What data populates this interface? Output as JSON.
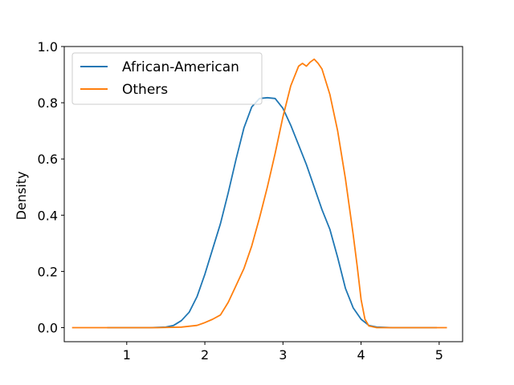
{
  "chart_data": {
    "type": "line",
    "title": "",
    "xlabel": "",
    "ylabel": "Density",
    "xlim": [
      0.2,
      5.3
    ],
    "ylim": [
      -0.05,
      1.0
    ],
    "x_ticks": [
      1,
      2,
      3,
      4,
      5
    ],
    "y_ticks": [
      0.0,
      0.2,
      0.4,
      0.6,
      0.8,
      1.0
    ],
    "x_tick_labels": [
      "1",
      "2",
      "3",
      "4",
      "5"
    ],
    "y_tick_labels": [
      "0.0",
      "0.2",
      "0.4",
      "0.6",
      "0.8",
      "1.0"
    ],
    "grid": false,
    "legend": "top-left",
    "series": [
      {
        "name": "African-American",
        "color": "#1f77b4",
        "points": [
          [
            0.75,
            0.0
          ],
          [
            1.0,
            0.0
          ],
          [
            1.3,
            0.0
          ],
          [
            1.5,
            0.002
          ],
          [
            1.6,
            0.008
          ],
          [
            1.7,
            0.025
          ],
          [
            1.8,
            0.055
          ],
          [
            1.9,
            0.11
          ],
          [
            2.0,
            0.19
          ],
          [
            2.1,
            0.28
          ],
          [
            2.2,
            0.37
          ],
          [
            2.3,
            0.48
          ],
          [
            2.4,
            0.6
          ],
          [
            2.5,
            0.71
          ],
          [
            2.6,
            0.785
          ],
          [
            2.7,
            0.815
          ],
          [
            2.8,
            0.818
          ],
          [
            2.9,
            0.815
          ],
          [
            3.0,
            0.78
          ],
          [
            3.1,
            0.72
          ],
          [
            3.2,
            0.65
          ],
          [
            3.3,
            0.58
          ],
          [
            3.4,
            0.5
          ],
          [
            3.5,
            0.42
          ],
          [
            3.6,
            0.35
          ],
          [
            3.7,
            0.25
          ],
          [
            3.8,
            0.14
          ],
          [
            3.9,
            0.07
          ],
          [
            4.0,
            0.03
          ],
          [
            4.1,
            0.008
          ],
          [
            4.2,
            0.002
          ],
          [
            4.4,
            0.0
          ],
          [
            4.97,
            0.0
          ]
        ]
      },
      {
        "name": "Others",
        "color": "#ff7f0e",
        "points": [
          [
            0.3,
            0.0
          ],
          [
            0.6,
            0.0
          ],
          [
            1.0,
            0.0
          ],
          [
            1.4,
            0.0
          ],
          [
            1.7,
            0.002
          ],
          [
            1.9,
            0.008
          ],
          [
            2.0,
            0.018
          ],
          [
            2.1,
            0.03
          ],
          [
            2.2,
            0.045
          ],
          [
            2.3,
            0.09
          ],
          [
            2.4,
            0.15
          ],
          [
            2.5,
            0.21
          ],
          [
            2.6,
            0.29
          ],
          [
            2.7,
            0.39
          ],
          [
            2.8,
            0.5
          ],
          [
            2.9,
            0.62
          ],
          [
            3.0,
            0.75
          ],
          [
            3.1,
            0.86
          ],
          [
            3.2,
            0.93
          ],
          [
            3.25,
            0.94
          ],
          [
            3.3,
            0.93
          ],
          [
            3.35,
            0.945
          ],
          [
            3.4,
            0.955
          ],
          [
            3.45,
            0.94
          ],
          [
            3.5,
            0.92
          ],
          [
            3.6,
            0.83
          ],
          [
            3.7,
            0.7
          ],
          [
            3.8,
            0.53
          ],
          [
            3.9,
            0.33
          ],
          [
            3.95,
            0.22
          ],
          [
            4.0,
            0.1
          ],
          [
            4.05,
            0.03
          ],
          [
            4.1,
            0.006
          ],
          [
            4.2,
            0.0
          ],
          [
            4.6,
            0.0
          ],
          [
            5.1,
            0.0
          ]
        ]
      }
    ]
  }
}
